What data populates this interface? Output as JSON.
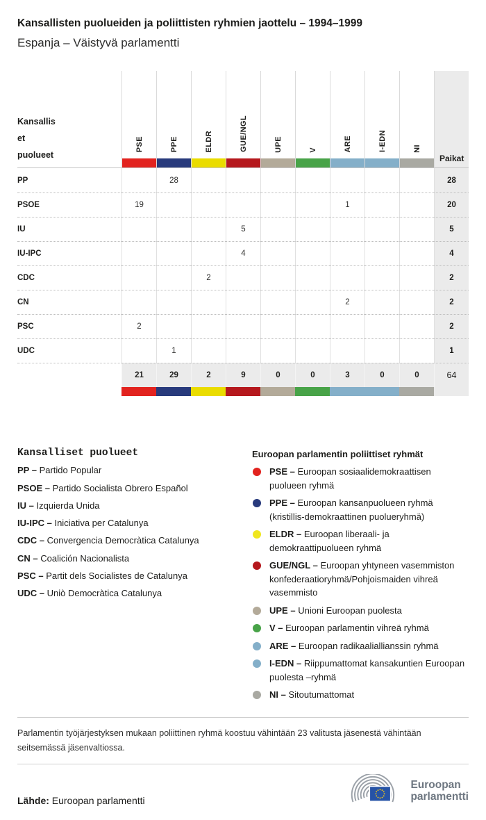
{
  "title": "Kansallisten puolueiden ja poliittisten ryhmien jaottelu – 1994–1999",
  "subtitle": "Espanja – Väistyvä parlamentti",
  "table": {
    "row_header_lines": [
      "Kansallis",
      "et",
      "puolueet"
    ],
    "seats_label": "Paikat",
    "groups": [
      {
        "code": "PSE",
        "color": "#e2231f"
      },
      {
        "code": "PPE",
        "color": "#283a7c"
      },
      {
        "code": "ELDR",
        "color": "#eadc00"
      },
      {
        "code": "GUE/NGL",
        "color": "#b5181d"
      },
      {
        "code": "UPE",
        "color": "#b3aa99"
      },
      {
        "code": "V",
        "color": "#48a348"
      },
      {
        "code": "ARE",
        "color": "#84afc9"
      },
      {
        "code": "I-EDN",
        "color": "#84afc9"
      },
      {
        "code": "NI",
        "color": "#a9a9a2"
      }
    ],
    "rows": [
      {
        "party": "PP",
        "values": [
          "",
          "28",
          "",
          "",
          "",
          "",
          "",
          "",
          ""
        ],
        "seats": "28"
      },
      {
        "party": "PSOE",
        "values": [
          "19",
          "",
          "",
          "",
          "",
          "",
          "1",
          "",
          ""
        ],
        "seats": "20"
      },
      {
        "party": "IU",
        "values": [
          "",
          "",
          "",
          "5",
          "",
          "",
          "",
          "",
          ""
        ],
        "seats": "5"
      },
      {
        "party": "IU-IPC",
        "values": [
          "",
          "",
          "",
          "4",
          "",
          "",
          "",
          "",
          ""
        ],
        "seats": "4"
      },
      {
        "party": "CDC",
        "values": [
          "",
          "",
          "2",
          "",
          "",
          "",
          "",
          "",
          ""
        ],
        "seats": "2"
      },
      {
        "party": "CN",
        "values": [
          "",
          "",
          "",
          "",
          "",
          "",
          "2",
          "",
          ""
        ],
        "seats": "2"
      },
      {
        "party": "PSC",
        "values": [
          "2",
          "",
          "",
          "",
          "",
          "",
          "",
          "",
          ""
        ],
        "seats": "2"
      },
      {
        "party": "UDC",
        "values": [
          "",
          "1",
          "",
          "",
          "",
          "",
          "",
          "",
          ""
        ],
        "seats": "1"
      }
    ],
    "totals": [
      "21",
      "29",
      "2",
      "9",
      "0",
      "0",
      "3",
      "0",
      "0"
    ],
    "total_seats": "64"
  },
  "legend_parties": {
    "heading": "Kansalliset puolueet",
    "items": [
      {
        "abbr_label": "PP –",
        "name": "Partido Popular"
      },
      {
        "abbr_label": "PSOE –",
        "name": "Partido Socialista Obrero Español"
      },
      {
        "abbr_label": "IU –",
        "name": "Izquierda Unida"
      },
      {
        "abbr_label": "IU-IPC –",
        "name": "Iniciativa per Catalunya"
      },
      {
        "abbr_label": "CDC –",
        "name": "Convergencia Democràtica Catalunya"
      },
      {
        "abbr_label": "CN –",
        "name": "Coalición Nacionalista"
      },
      {
        "abbr_label": "PSC –",
        "name": "Partit dels Socialistes de Catalunya"
      },
      {
        "abbr_label": "UDC –",
        "name": "Uniò Democràtica Catalunya"
      }
    ]
  },
  "legend_groups": {
    "heading": "Euroopan parlamentin poliittiset ryhmät",
    "items": [
      {
        "abbr_label": "PSE –",
        "color": "#e2231f",
        "name": "Euroopan sosiaalidemokraattisen puolueen ryhmä"
      },
      {
        "abbr_label": "PPE –",
        "color": "#283a7c",
        "name": "Euroopan kansanpuolueen ryhmä (kristillis-demokraattinen puolueryhmä)"
      },
      {
        "abbr_label": "ELDR –",
        "color": "#f0e61e",
        "name": "Euroopan liberaali- ja demokraattipuolueen ryhmä"
      },
      {
        "abbr_label": "GUE/NGL –",
        "color": "#b5181d",
        "name": "Euroopan yhtyneen vasemmiston konfederaatioryhmä/Pohjoismaiden vihreä vasemmisto"
      },
      {
        "abbr_label": "UPE –",
        "color": "#b3aa99",
        "name": "Unioni Euroopan puolesta"
      },
      {
        "abbr_label": "V –",
        "color": "#48a348",
        "name": "Euroopan parlamentin vihreä ryhmä"
      },
      {
        "abbr_label": "ARE –",
        "color": "#84afc9",
        "name": "Euroopan radikaaliallianssin ryhmä"
      },
      {
        "abbr_label": "I-EDN –",
        "color": "#84afc9",
        "name": "Riippumattomat kansakuntien Euroopan puolesta –ryhmä"
      },
      {
        "abbr_label": "NI –",
        "color": "#a9a9a2",
        "name": "Sitoutumattomat"
      }
    ]
  },
  "footnote": "Parlamentin työjärjestyksen mukaan poliittinen ryhmä koostuu vähintään 23 valitusta jäsenestä vähintään seitsemässä jäsenvaltiossa.",
  "source": {
    "label": "Lähde:",
    "value": "Euroopan parlamentti"
  },
  "logo": {
    "line1": "Euroopan",
    "line2": "parlamentti"
  },
  "chart_data": {
    "type": "table",
    "title": "Kansallisten puolueiden ja poliittisten ryhmien jaottelu – 1994–1999",
    "subtitle": "Espanja – Väistyvä parlamentti",
    "columns": [
      "PSE",
      "PPE",
      "ELDR",
      "GUE/NGL",
      "UPE",
      "V",
      "ARE",
      "I-EDN",
      "NI",
      "Paikat"
    ],
    "rows": [
      {
        "party": "PP",
        "values": [
          null,
          28,
          null,
          null,
          null,
          null,
          null,
          null,
          null
        ],
        "seats": 28
      },
      {
        "party": "PSOE",
        "values": [
          19,
          null,
          null,
          null,
          null,
          null,
          1,
          null,
          null
        ],
        "seats": 20
      },
      {
        "party": "IU",
        "values": [
          null,
          null,
          null,
          5,
          null,
          null,
          null,
          null,
          null
        ],
        "seats": 5
      },
      {
        "party": "IU-IPC",
        "values": [
          null,
          null,
          null,
          4,
          null,
          null,
          null,
          null,
          null
        ],
        "seats": 4
      },
      {
        "party": "CDC",
        "values": [
          null,
          null,
          2,
          null,
          null,
          null,
          null,
          null,
          null
        ],
        "seats": 2
      },
      {
        "party": "CN",
        "values": [
          null,
          null,
          null,
          null,
          null,
          null,
          2,
          null,
          null
        ],
        "seats": 2
      },
      {
        "party": "PSC",
        "values": [
          2,
          null,
          null,
          null,
          null,
          null,
          null,
          null,
          null
        ],
        "seats": 2
      },
      {
        "party": "UDC",
        "values": [
          null,
          1,
          null,
          null,
          null,
          null,
          null,
          null,
          null
        ],
        "seats": 1
      }
    ],
    "totals": [
      21,
      29,
      2,
      9,
      0,
      0,
      3,
      0,
      0
    ],
    "total_seats": 64
  }
}
